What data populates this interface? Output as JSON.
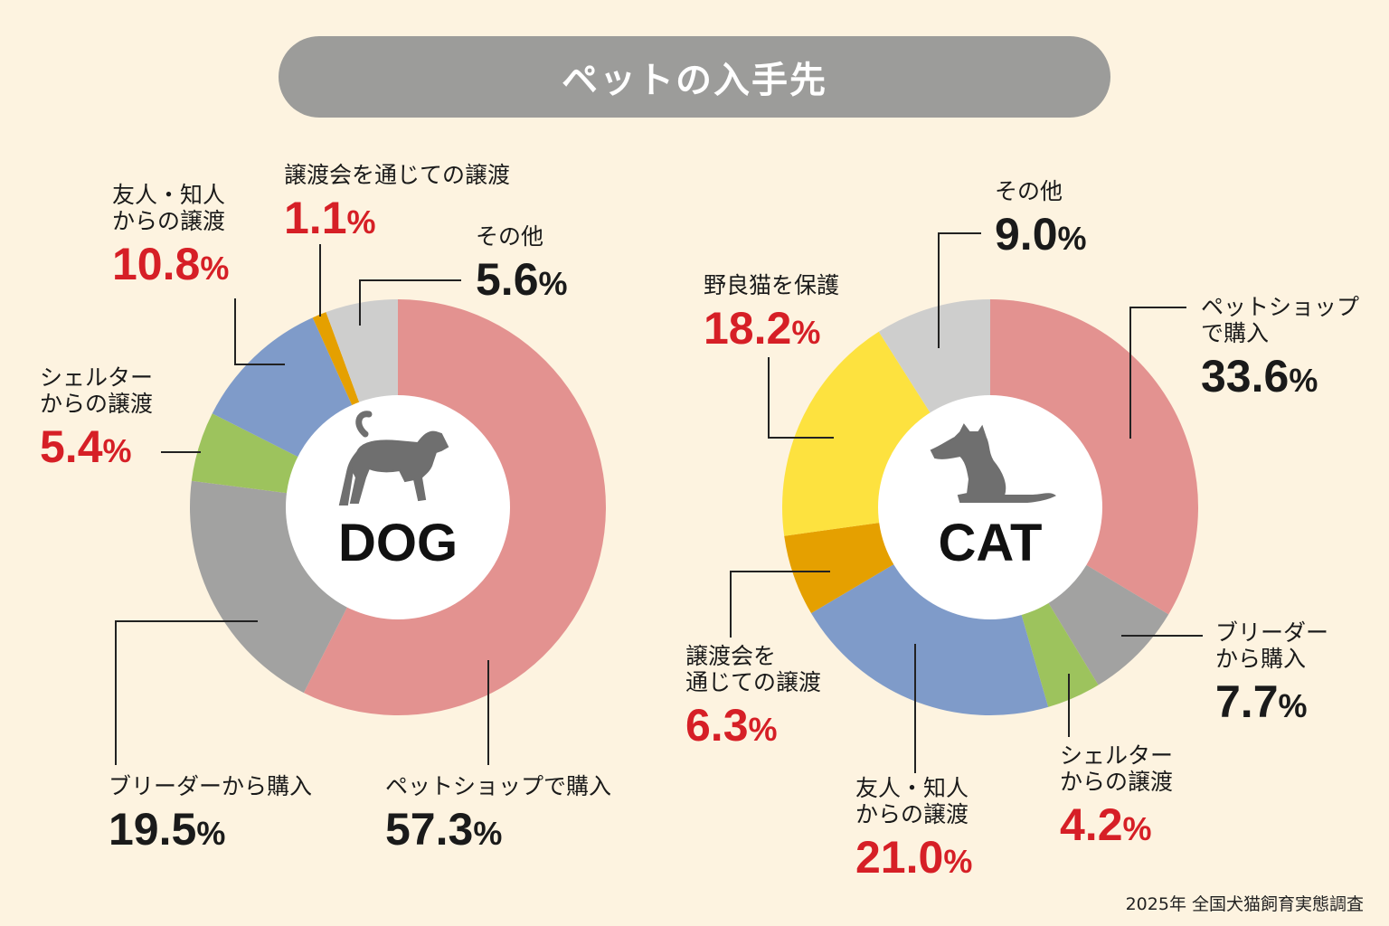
{
  "title": "ペットの入手先",
  "source": "2025年 全国犬猫飼育実態調査",
  "chart_data": [
    {
      "type": "pie",
      "center_label": "DOG",
      "center_icon": "dog-silhouette-icon",
      "unit": "%",
      "slices": [
        {
          "key": "petshop",
          "label": "ペットショップで購入",
          "value": 57.3,
          "color": "#e39290"
        },
        {
          "key": "breeder",
          "label": "ブリーダーから購入",
          "value": 19.5,
          "color": "#a2a2a1"
        },
        {
          "key": "shelter",
          "label": "シェルターからの譲渡",
          "value": 5.4,
          "color": "#9dc35d"
        },
        {
          "key": "friend",
          "label": "友人・知人からの譲渡",
          "value": 10.8,
          "color": "#7f9bc9"
        },
        {
          "key": "event",
          "label": "譲渡会を通じての譲渡",
          "value": 1.1,
          "color": "#e5a000"
        },
        {
          "key": "other",
          "label": "その他",
          "value": 5.6,
          "color": "#cececd"
        }
      ]
    },
    {
      "type": "pie",
      "center_label": "CAT",
      "center_icon": "cat-silhouette-icon",
      "unit": "%",
      "slices": [
        {
          "key": "petshop",
          "label": "ペットショップで購入",
          "value": 33.6,
          "color": "#e39290"
        },
        {
          "key": "breeder",
          "label": "ブリーダーから購入",
          "value": 7.7,
          "color": "#a2a2a1"
        },
        {
          "key": "shelter",
          "label": "シェルターからの譲渡",
          "value": 4.2,
          "color": "#9dc35d"
        },
        {
          "key": "friend",
          "label": "友人・知人からの譲渡",
          "value": 21.0,
          "color": "#7f9bc9"
        },
        {
          "key": "event",
          "label": "譲渡会を通じての譲渡",
          "value": 6.3,
          "color": "#e5a000"
        },
        {
          "key": "stray",
          "label": "野良猫を保護",
          "value": 18.2,
          "color": "#fde23f"
        },
        {
          "key": "other",
          "label": "その他",
          "value": 9.0,
          "color": "#cececd"
        }
      ]
    }
  ],
  "labels": {
    "dog": {
      "petshop": {
        "l1": "ペットショップで購入",
        "l2": "",
        "num": "57.3",
        "pct": "%"
      },
      "breeder": {
        "l1": "ブリーダーから購入",
        "l2": "",
        "num": "19.5",
        "pct": "%"
      },
      "shelter": {
        "l1": "シェルター",
        "l2": "からの譲渡",
        "num": "5.4",
        "pct": "%"
      },
      "friend": {
        "l1": "友人・知人",
        "l2": "からの譲渡",
        "num": "10.8",
        "pct": "%"
      },
      "event": {
        "l1": "譲渡会を通じての譲渡",
        "l2": "",
        "num": "1.1",
        "pct": "%"
      },
      "other": {
        "l1": "その他",
        "l2": "",
        "num": "5.6",
        "pct": "%"
      }
    },
    "cat": {
      "petshop": {
        "l1": "ペットショップ",
        "l2": "で購入",
        "num": "33.6",
        "pct": "%"
      },
      "breeder": {
        "l1": "ブリーダー",
        "l2": "から購入",
        "num": "7.7",
        "pct": "%"
      },
      "shelter": {
        "l1": "シェルター",
        "l2": "からの譲渡",
        "num": "4.2",
        "pct": "%"
      },
      "friend": {
        "l1": "友人・知人",
        "l2": "からの譲渡",
        "num": "21.0",
        "pct": "%"
      },
      "event": {
        "l1": "譲渡会を",
        "l2": "通じての譲渡",
        "num": "6.3",
        "pct": "%"
      },
      "stray": {
        "l1": "野良猫を保護",
        "l2": "",
        "num": "18.2",
        "pct": "%"
      },
      "other": {
        "l1": "その他",
        "l2": "",
        "num": "9.0",
        "pct": "%"
      }
    }
  }
}
